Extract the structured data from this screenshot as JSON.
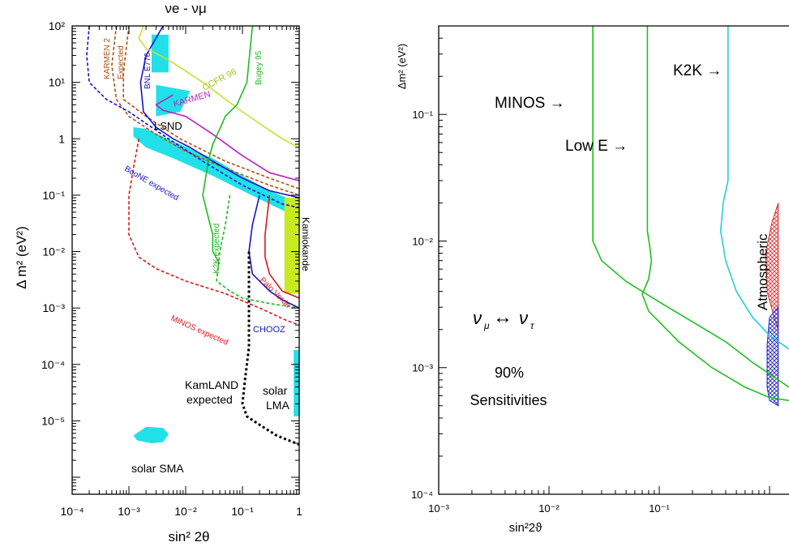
{
  "chart_data": [
    {
      "type": "line",
      "title": "νe - νμ",
      "xlabel": "sin² 2θ",
      "ylabel": "Δ m²  (eV²)",
      "x_scale": "log",
      "y_scale": "log",
      "xlim": [
        0.0001,
        1
      ],
      "ylim": [
        5e-07,
        100
      ],
      "x_ticks": [
        {
          "value": 0.0001,
          "label": "10⁻⁴"
        },
        {
          "value": 0.001,
          "label": "10⁻³"
        },
        {
          "value": 0.01,
          "label": "10⁻²"
        },
        {
          "value": 0.1,
          "label": "10⁻¹"
        },
        {
          "value": 1,
          "label": "1"
        }
      ],
      "y_ticks": [
        {
          "value": 100,
          "label": "10²"
        },
        {
          "value": 10,
          "label": "10¹"
        },
        {
          "value": 1,
          "label": "1"
        },
        {
          "value": 0.1,
          "label": "10⁻¹"
        },
        {
          "value": 0.01,
          "label": "10⁻²"
        },
        {
          "value": 0.001,
          "label": "10⁻³"
        },
        {
          "value": 0.0001,
          "label": "10⁻⁴"
        },
        {
          "value": 1e-05,
          "label": "10⁻⁵"
        }
      ],
      "colors": {
        "cyan": "#22e0e8",
        "lime": "#c8ea20",
        "blue": "#1515cc",
        "red": "#e01515",
        "green": "#20bb20",
        "magenta": "#c020c0",
        "brown": "#b05010",
        "yellow": "#c8e030",
        "black": "#000000"
      },
      "regions": [
        {
          "label": "LSND",
          "color": "cyan",
          "x": [
            0.0012,
            0.002,
            0.006,
            0.03,
            0.1,
            0.3,
            0.6,
            0.6,
            0.3,
            0.1,
            0.03,
            0.006,
            0.002,
            0.0012
          ],
          "y": [
            1.6,
            1.5,
            0.9,
            0.45,
            0.22,
            0.12,
            0.09,
            0.05,
            0.07,
            0.12,
            0.22,
            0.45,
            0.7,
            1.1
          ]
        },
        {
          "label": "",
          "color": "cyan",
          "x": [
            0.0025,
            0.005,
            0.005,
            0.0025
          ],
          "y": [
            70,
            70,
            15,
            15
          ]
        },
        {
          "label": "",
          "color": "cyan",
          "x": [
            0.003,
            0.012,
            0.008,
            0.003
          ],
          "y": [
            9,
            7,
            3,
            2.5
          ]
        },
        {
          "label": "Kamiokande",
          "color": "lime",
          "x": [
            0.55,
            1,
            1,
            0.55
          ],
          "y": [
            0.09,
            0.09,
            0.0018,
            0.0018
          ]
        },
        {
          "label": "solar LMA",
          "color": "cyan",
          "x": [
            0.8,
            1,
            1,
            0.8
          ],
          "y": [
            0.00018,
            0.00018,
            1.2e-05,
            1.2e-05
          ]
        },
        {
          "label": "solar SMA",
          "color": "cyan",
          "x": [
            0.0012,
            0.002,
            0.004,
            0.005,
            0.004,
            0.0025,
            0.0014,
            0.0012
          ],
          "y": [
            5.5e-06,
            7.8e-06,
            7.5e-06,
            5.8e-06,
            4.2e-06,
            4e-06,
            4.5e-06,
            5.5e-06
          ]
        }
      ],
      "series": [
        {
          "name": "KARMEN 2",
          "color": "brown",
          "dash": true,
          "x": [
            0.0006,
            0.0005,
            0.0006,
            0.001,
            0.003,
            0.01,
            0.05,
            0.3,
            1
          ],
          "y": [
            100,
            20,
            5,
            2.5,
            1.2,
            0.6,
            0.3,
            0.15,
            0.1
          ]
        },
        {
          "name": "Expected",
          "color": "brown",
          "dash": true,
          "x": [
            0.001,
            0.0008,
            0.0008,
            0.002,
            0.008,
            0.05,
            0.3,
            1
          ],
          "y": [
            100,
            15,
            5,
            2.5,
            1,
            0.4,
            0.2,
            0.13
          ]
        },
        {
          "name": "BNL E776",
          "color": "blue",
          "dash": false,
          "x": [
            0.004,
            0.002,
            0.0016,
            0.0018,
            0.003,
            0.006,
            0.012,
            0.03,
            0.1,
            0.3,
            1
          ],
          "y": [
            100,
            30,
            10,
            3,
            1.6,
            1,
            0.7,
            0.4,
            0.2,
            0.12,
            0.09
          ]
        },
        {
          "name": "KARMEN",
          "color": "magenta",
          "dash": false,
          "x": [
            0.006,
            0.003,
            0.004,
            0.01,
            0.03,
            0.1,
            0.3,
            1
          ],
          "y": [
            6,
            4,
            3.2,
            2.5,
            1.2,
            0.5,
            0.25,
            0.18
          ]
        },
        {
          "name": "CCFR 96",
          "color": "yellow",
          "dash": false,
          "x": [
            0.0018,
            0.0015,
            0.002,
            0.005,
            0.02,
            0.1,
            0.5,
            1
          ],
          "y": [
            100,
            60,
            40,
            25,
            10,
            3,
            1,
            0.7
          ]
        },
        {
          "name": "Bugey 95",
          "color": "green",
          "dash": false,
          "x": [
            0.15,
            0.12,
            0.08,
            0.05,
            0.04,
            0.03,
            0.025,
            0.02,
            0.025,
            0.03,
            0.03,
            0.04
          ],
          "y": [
            100,
            10,
            4,
            2.5,
            1.5,
            0.8,
            0.4,
            0.1,
            0.04,
            0.02,
            0.01,
            0.006
          ]
        },
        {
          "name": "BooNE expected",
          "color": "blue",
          "dash": true,
          "x": [
            0.0002,
            0.00018,
            0.0002,
            0.0004,
            0.001,
            0.005,
            0.02,
            0.1,
            0.5,
            1
          ],
          "y": [
            100,
            30,
            10,
            5,
            3,
            1,
            0.4,
            0.15,
            0.07,
            0.06
          ]
        },
        {
          "name": "K2K expected",
          "color": "green",
          "dash": true,
          "x": [
            0.06,
            0.05,
            0.04,
            0.035,
            0.06,
            0.1,
            0.3,
            1
          ],
          "y": [
            0.1,
            0.03,
            0.01,
            0.003,
            0.002,
            0.0015,
            0.0012,
            0.001
          ]
        },
        {
          "name": "CHOOZ",
          "color": "blue",
          "dash": false,
          "x": [
            0.2,
            0.15,
            0.13,
            0.15,
            0.2,
            0.3,
            0.5,
            1
          ],
          "y": [
            0.1,
            0.03,
            0.01,
            0.004,
            0.003,
            0.002,
            0.0014,
            0.001
          ]
        },
        {
          "name": "Palo Verde",
          "color": "red",
          "dash": false,
          "x": [
            0.3,
            0.25,
            0.25,
            0.3,
            0.5,
            1
          ],
          "y": [
            0.1,
            0.02,
            0.008,
            0.004,
            0.002,
            0.0015
          ]
        },
        {
          "name": "MINOS expected",
          "color": "red",
          "dash": true,
          "x": [
            0.0015,
            0.0012,
            0.001,
            0.001,
            0.0015,
            0.003,
            0.01,
            0.05,
            0.2,
            0.6,
            1
          ],
          "y": [
            1,
            0.3,
            0.1,
            0.02,
            0.008,
            0.005,
            0.003,
            0.0018,
            0.001,
            0.0006,
            0.0005
          ]
        },
        {
          "name": "KamLAND expected",
          "color": "black",
          "dash": true,
          "x": [
            0.13,
            0.13,
            0.11,
            0.1,
            0.12,
            0.2,
            0.4,
            1
          ],
          "y": [
            0.01,
            0.0002,
            5e-05,
            2e-05,
            1.2e-05,
            8.5e-06,
            5.5e-06,
            3.8e-06
          ]
        }
      ],
      "annotations": [
        "KARMEN 2",
        "Expected",
        "BNL E776",
        "KARMEN",
        "CCFR 96",
        "Bugey 95",
        "LSND",
        "BooNE expected",
        "K2K expected",
        "Kamiokande",
        "Palo Verde",
        "MINOS expected",
        "CHOOZ",
        "KamLAND",
        "expected",
        "solar",
        "LMA",
        "solar SMA"
      ]
    },
    {
      "type": "line",
      "title": "",
      "xlabel": "sin²2ϑ",
      "ylabel": "Δm² (eV²)",
      "x_scale": "log",
      "y_scale": "log",
      "xlim": [
        0.001,
        1.5
      ],
      "ylim": [
        0.0001,
        0.5
      ],
      "x_ticks": [
        {
          "value": 0.001,
          "label": "10⁻³"
        },
        {
          "value": 0.01,
          "label": "10⁻²"
        },
        {
          "value": 0.1,
          "label": "10⁻¹"
        }
      ],
      "y_ticks": [
        {
          "value": 0.1,
          "label": "10⁻¹"
        },
        {
          "value": 0.01,
          "label": "10⁻²"
        },
        {
          "value": 0.001,
          "label": "10⁻³"
        },
        {
          "value": 0.0001,
          "label": "10⁻⁴"
        }
      ],
      "colors": {
        "green": "#20c020",
        "cyan": "#20d0e0",
        "red": "#e03030",
        "blue": "#2020d0"
      },
      "regions": [
        {
          "label": "",
          "color": "red",
          "x": [
            1.2,
            1.05,
            0.92,
            0.95,
            1.1,
            1.2
          ],
          "y": [
            0.02,
            0.014,
            0.008,
            0.004,
            0.0025,
            0.002
          ]
        },
        {
          "label": "",
          "color": "blue",
          "x": [
            1.2,
            1.0,
            0.95,
            0.95,
            1.0,
            1.2
          ],
          "y": [
            0.003,
            0.0025,
            0.0015,
            0.0007,
            0.00055,
            0.0005
          ]
        }
      ],
      "series": [
        {
          "name": "MINOS",
          "color": "green",
          "x": [
            0.025,
            0.025,
            0.03,
            0.05,
            0.1,
            0.2,
            0.4,
            0.7,
            1.5
          ],
          "y": [
            0.5,
            0.01,
            0.007,
            0.0048,
            0.0033,
            0.0023,
            0.0016,
            0.0011,
            0.0007
          ]
        },
        {
          "name": "Low E",
          "color": "green",
          "x": [
            0.078,
            0.078,
            0.082,
            0.085,
            0.08,
            0.07,
            0.08,
            0.15,
            0.3,
            0.6,
            1,
            1.5
          ],
          "y": [
            0.5,
            0.012,
            0.009,
            0.007,
            0.005,
            0.0038,
            0.0028,
            0.0016,
            0.001,
            0.0007,
            0.00058,
            0.00055
          ]
        },
        {
          "name": "K2K",
          "color": "cyan",
          "x": [
            0.42,
            0.42,
            0.38,
            0.36,
            0.4,
            0.5,
            0.7,
            1,
            1.5
          ],
          "y": [
            0.5,
            0.03,
            0.02,
            0.012,
            0.007,
            0.004,
            0.0025,
            0.0018,
            0.0014
          ]
        }
      ],
      "annotations": [
        "MINOS →",
        "Low E →",
        "K2K →",
        "Atmospheric",
        "ν",
        "μ",
        "↔",
        "ν",
        "τ",
        "90%",
        "Sensitivities"
      ]
    }
  ]
}
